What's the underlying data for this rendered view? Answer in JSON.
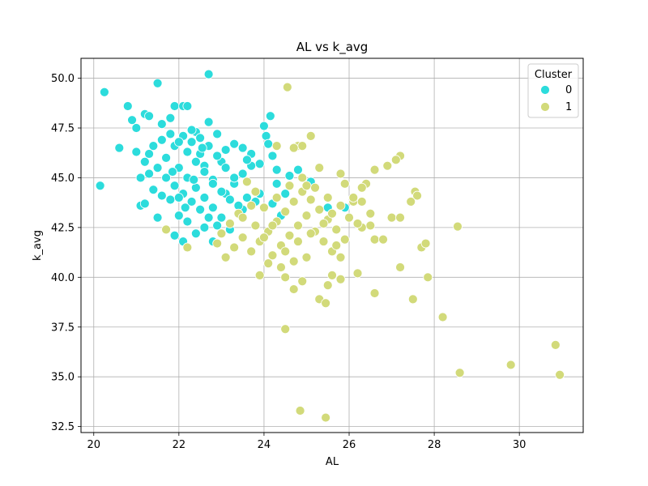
{
  "chart_data": {
    "type": "scatter",
    "title": "AL vs k_avg",
    "xlabel": "AL",
    "ylabel": "k_avg",
    "xlim": [
      19.7,
      31.5
    ],
    "ylim": [
      32.2,
      51.0
    ],
    "x_ticks": [
      20,
      22,
      24,
      26,
      28,
      30
    ],
    "y_ticks": [
      32.5,
      35.0,
      37.5,
      40.0,
      42.5,
      45.0,
      47.5,
      50.0
    ],
    "grid": true,
    "legend": {
      "title": "Cluster",
      "placement": "top-right"
    },
    "series": [
      {
        "name": "0",
        "color": "#2cdcdc",
        "points": [
          [
            20.15,
            44.6
          ],
          [
            20.25,
            49.3
          ],
          [
            21.5,
            49.75
          ],
          [
            22.7,
            50.2
          ],
          [
            20.8,
            48.6
          ],
          [
            21.2,
            48.2
          ],
          [
            21.9,
            48.6
          ],
          [
            22.1,
            48.6
          ],
          [
            22.2,
            48.6
          ],
          [
            20.6,
            46.5
          ],
          [
            20.9,
            47.9
          ],
          [
            21.0,
            47.5
          ],
          [
            21.3,
            48.1
          ],
          [
            21.6,
            47.7
          ],
          [
            21.8,
            48.0
          ],
          [
            22.4,
            47.3
          ],
          [
            22.7,
            47.8
          ],
          [
            22.9,
            47.2
          ],
          [
            21.0,
            46.3
          ],
          [
            21.1,
            45.0
          ],
          [
            21.3,
            45.2
          ],
          [
            21.4,
            44.4
          ],
          [
            21.5,
            43.0
          ],
          [
            21.1,
            43.6
          ],
          [
            21.2,
            43.7
          ],
          [
            21.6,
            44.1
          ],
          [
            21.8,
            43.9
          ],
          [
            22.0,
            43.1
          ],
          [
            22.2,
            42.8
          ],
          [
            22.4,
            42.2
          ],
          [
            22.6,
            42.5
          ],
          [
            22.8,
            41.8
          ],
          [
            21.9,
            42.1
          ],
          [
            22.1,
            41.8
          ],
          [
            23.2,
            42.4
          ],
          [
            23.5,
            43.4
          ],
          [
            23.6,
            44.0
          ],
          [
            23.8,
            43.8
          ],
          [
            24.0,
            47.6
          ],
          [
            24.05,
            47.1
          ],
          [
            24.15,
            48.1
          ],
          [
            24.2,
            46.1
          ],
          [
            24.3,
            45.4
          ],
          [
            24.5,
            44.2
          ],
          [
            24.6,
            45.1
          ],
          [
            24.8,
            45.4
          ],
          [
            25.1,
            44.8
          ],
          [
            25.5,
            43.5
          ],
          [
            25.9,
            43.5
          ],
          [
            24.4,
            43.1
          ],
          [
            22.3,
            46.8
          ],
          [
            22.5,
            46.2
          ],
          [
            22.6,
            45.6
          ],
          [
            22.8,
            44.9
          ],
          [
            23.0,
            45.8
          ],
          [
            23.1,
            46.4
          ],
          [
            23.3,
            46.7
          ],
          [
            23.5,
            46.5
          ],
          [
            23.7,
            46.2
          ],
          [
            23.9,
            45.7
          ],
          [
            22.0,
            45.5
          ],
          [
            22.2,
            45.0
          ],
          [
            22.4,
            44.5
          ],
          [
            22.6,
            44.0
          ],
          [
            22.8,
            43.5
          ],
          [
            23.0,
            43.0
          ],
          [
            21.7,
            46.0
          ],
          [
            21.9,
            46.6
          ],
          [
            22.1,
            47.1
          ],
          [
            22.3,
            47.4
          ],
          [
            21.5,
            45.5
          ],
          [
            21.7,
            45.0
          ],
          [
            21.9,
            44.6
          ],
          [
            22.1,
            44.2
          ],
          [
            22.3,
            43.8
          ],
          [
            22.5,
            43.4
          ],
          [
            22.7,
            43.0
          ],
          [
            22.9,
            42.6
          ],
          [
            23.1,
            44.2
          ],
          [
            23.3,
            44.7
          ],
          [
            23.5,
            45.2
          ],
          [
            23.7,
            45.6
          ],
          [
            21.4,
            46.6
          ],
          [
            21.6,
            46.9
          ],
          [
            21.8,
            47.2
          ],
          [
            22.0,
            46.8
          ],
          [
            22.2,
            46.3
          ],
          [
            22.4,
            45.8
          ],
          [
            22.6,
            45.3
          ],
          [
            22.8,
            44.7
          ],
          [
            23.0,
            44.3
          ],
          [
            23.2,
            43.9
          ],
          [
            23.4,
            43.6
          ],
          [
            21.2,
            45.8
          ],
          [
            21.3,
            46.2
          ],
          [
            22.5,
            47.0
          ],
          [
            22.7,
            46.6
          ],
          [
            22.9,
            46.1
          ],
          [
            23.1,
            45.5
          ],
          [
            23.3,
            45.0
          ],
          [
            24.1,
            46.7
          ],
          [
            24.3,
            44.7
          ],
          [
            23.9,
            44.2
          ],
          [
            24.2,
            43.7
          ],
          [
            22.0,
            44.0
          ],
          [
            22.35,
            44.9
          ],
          [
            22.55,
            46.5
          ],
          [
            21.85,
            45.3
          ],
          [
            22.15,
            43.5
          ],
          [
            23.6,
            45.9
          ]
        ]
      },
      {
        "name": "1",
        "color": "#d2da7a",
        "points": [
          [
            24.55,
            49.55
          ],
          [
            25.1,
            47.1
          ],
          [
            24.8,
            46.6
          ],
          [
            24.9,
            46.6
          ],
          [
            24.3,
            46.6
          ],
          [
            24.7,
            46.5
          ],
          [
            26.9,
            45.6
          ],
          [
            27.2,
            46.1
          ],
          [
            27.1,
            45.9
          ],
          [
            26.6,
            45.4
          ],
          [
            27.55,
            44.3
          ],
          [
            27.6,
            44.1
          ],
          [
            27.45,
            43.8
          ],
          [
            26.4,
            44.7
          ],
          [
            26.3,
            44.5
          ],
          [
            25.3,
            45.5
          ],
          [
            25.8,
            45.2
          ],
          [
            25.9,
            44.7
          ],
          [
            26.1,
            43.8
          ],
          [
            26.3,
            43.8
          ],
          [
            27.0,
            43.0
          ],
          [
            27.2,
            43.0
          ],
          [
            26.5,
            43.2
          ],
          [
            26.5,
            42.6
          ],
          [
            26.3,
            42.5
          ],
          [
            26.6,
            41.9
          ],
          [
            26.8,
            41.9
          ],
          [
            27.7,
            41.5
          ],
          [
            27.8,
            41.7
          ],
          [
            28.55,
            42.55
          ],
          [
            27.2,
            40.5
          ],
          [
            27.85,
            40.0
          ],
          [
            26.2,
            40.2
          ],
          [
            26.6,
            39.2
          ],
          [
            25.8,
            39.9
          ],
          [
            25.5,
            39.6
          ],
          [
            25.6,
            40.1
          ],
          [
            25.3,
            38.9
          ],
          [
            25.45,
            38.7
          ],
          [
            24.9,
            39.8
          ],
          [
            24.7,
            39.4
          ],
          [
            24.5,
            37.4
          ],
          [
            27.5,
            38.9
          ],
          [
            28.2,
            38.0
          ],
          [
            28.6,
            35.2
          ],
          [
            29.8,
            35.6
          ],
          [
            30.85,
            36.6
          ],
          [
            30.95,
            35.1
          ],
          [
            24.85,
            33.3
          ],
          [
            25.45,
            32.95
          ],
          [
            21.7,
            42.4
          ],
          [
            22.2,
            41.5
          ],
          [
            23.1,
            41.0
          ],
          [
            23.9,
            40.1
          ],
          [
            24.5,
            40.0
          ],
          [
            23.5,
            42.0
          ],
          [
            23.7,
            41.3
          ],
          [
            23.9,
            41.8
          ],
          [
            24.1,
            42.3
          ],
          [
            24.3,
            42.8
          ],
          [
            24.5,
            43.3
          ],
          [
            24.7,
            43.8
          ],
          [
            24.9,
            44.3
          ],
          [
            25.1,
            43.9
          ],
          [
            25.3,
            43.4
          ],
          [
            25.5,
            42.9
          ],
          [
            25.7,
            42.4
          ],
          [
            25.9,
            41.9
          ],
          [
            24.2,
            41.1
          ],
          [
            24.4,
            41.6
          ],
          [
            24.6,
            42.1
          ],
          [
            24.8,
            42.6
          ],
          [
            25.0,
            43.1
          ],
          [
            25.2,
            42.3
          ],
          [
            25.4,
            41.8
          ],
          [
            25.6,
            41.3
          ],
          [
            25.8,
            41.0
          ],
          [
            24.0,
            43.5
          ],
          [
            23.8,
            44.3
          ],
          [
            23.6,
            44.8
          ],
          [
            23.4,
            43.2
          ],
          [
            23.2,
            42.7
          ],
          [
            23.0,
            42.2
          ],
          [
            22.9,
            41.7
          ],
          [
            23.3,
            41.5
          ],
          [
            24.3,
            44.0
          ],
          [
            24.6,
            44.6
          ],
          [
            24.9,
            45.0
          ],
          [
            25.2,
            44.5
          ],
          [
            25.5,
            44.0
          ],
          [
            25.8,
            43.6
          ],
          [
            26.0,
            43.0
          ],
          [
            26.2,
            42.7
          ],
          [
            25.7,
            41.6
          ],
          [
            25.0,
            41.0
          ],
          [
            24.7,
            40.8
          ],
          [
            24.4,
            40.5
          ],
          [
            24.1,
            40.7
          ],
          [
            23.8,
            42.6
          ],
          [
            24.0,
            42.0
          ],
          [
            24.2,
            42.6
          ],
          [
            24.5,
            41.3
          ],
          [
            24.8,
            41.8
          ],
          [
            25.1,
            42.2
          ],
          [
            25.4,
            42.7
          ],
          [
            23.5,
            43.0
          ],
          [
            23.7,
            43.6
          ],
          [
            25.6,
            43.2
          ],
          [
            26.1,
            44.0
          ],
          [
            25.0,
            44.6
          ]
        ]
      }
    ]
  }
}
